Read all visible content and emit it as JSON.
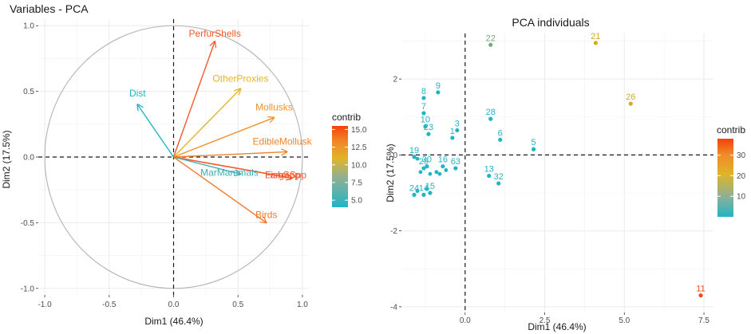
{
  "chart_data": [
    {
      "type": "scatter",
      "subtype": "pca-variables",
      "title": "Variables - PCA",
      "xlabel": "Dim1 (46.4%)",
      "ylabel": "Dim2 (17.5%)",
      "xlim": [
        -1.05,
        1.05
      ],
      "ylim": [
        -1.05,
        1.05
      ],
      "xticks": [
        -1.0,
        -0.5,
        0.0,
        0.5,
        1.0
      ],
      "yticks": [
        -1.0,
        -0.5,
        0.0,
        0.5,
        1.0
      ],
      "xtick_labels": [
        "-1.0",
        "-0.5",
        "0.0",
        "0.5",
        "1.0"
      ],
      "ytick_labels": [
        "-1.0",
        "-0.5",
        "0.0",
        "0.5",
        "1.0"
      ],
      "legend": {
        "title": "contrib",
        "range": [
          4.0,
          15.5
        ],
        "ticks": [
          5.0,
          7.5,
          10.0,
          12.5,
          15.0
        ],
        "tick_labels": [
          "5.0",
          "7.5",
          "10.0",
          "12.5",
          "15.0"
        ],
        "placement": "right"
      },
      "variables": [
        {
          "name": "PerfurShells",
          "x": 0.32,
          "y": 0.88,
          "contrib": 15.0,
          "color": "#f2592a"
        },
        {
          "name": "OtherProxies",
          "x": 0.52,
          "y": 0.52,
          "contrib": 11.5,
          "color": "#e8b420"
        },
        {
          "name": "Mollusks",
          "x": 0.78,
          "y": 0.3,
          "contrib": 12.5,
          "color": "#f0922a"
        },
        {
          "name": "EdibleMollusk",
          "x": 0.88,
          "y": 0.04,
          "contrib": 13.0,
          "color": "#f0832a"
        },
        {
          "name": "FishSpp",
          "x": 0.92,
          "y": -0.16,
          "contrib": 15.5,
          "color": "#f24f20"
        },
        {
          "name": "LargeSpp",
          "x": 0.92,
          "y": -0.16,
          "contrib": 14.8,
          "color": "#f45a2c"
        },
        {
          "name": "MarMammals",
          "x": 0.52,
          "y": -0.13,
          "contrib": 5.0,
          "color": "#3cb0b4"
        },
        {
          "name": "Birds",
          "x": 0.72,
          "y": -0.5,
          "contrib": 13.0,
          "color": "#f07a2c"
        },
        {
          "name": "Dist",
          "x": -0.28,
          "y": 0.4,
          "contrib": 4.5,
          "color": "#22b4c4"
        }
      ]
    },
    {
      "type": "scatter",
      "subtype": "pca-individuals",
      "title": "PCA individuals",
      "xlabel": "Dim1 (46.4%)",
      "ylabel": "Dim2 (17.5%)",
      "xlim": [
        -2.0,
        7.8
      ],
      "ylim": [
        -4.15,
        3.2
      ],
      "xticks": [
        0.0,
        2.5,
        5.0,
        7.5
      ],
      "yticks": [
        -4,
        -2,
        0,
        2
      ],
      "xtick_labels": [
        "0.0",
        "2.5",
        "5.0",
        "7.5"
      ],
      "ytick_labels": [
        "-4",
        "-2",
        "0",
        "2"
      ],
      "legend": {
        "title": "contrib",
        "range": [
          0,
          38
        ],
        "ticks": [
          10,
          20,
          30
        ],
        "tick_labels": [
          "10",
          "20",
          "30"
        ],
        "placement": "right"
      },
      "points": [
        {
          "label": "22",
          "x": 0.8,
          "y": 2.9,
          "color": "#7aaa7a"
        },
        {
          "label": "21",
          "x": 4.1,
          "y": 2.95,
          "color": "#d4aa28"
        },
        {
          "label": "26",
          "x": 5.2,
          "y": 1.35,
          "color": "#d4aa28"
        },
        {
          "label": "11",
          "x": 7.4,
          "y": -3.7,
          "color": "#f24a18"
        },
        {
          "label": "9",
          "x": -0.85,
          "y": 1.65,
          "color": "#22b4c4"
        },
        {
          "label": "8",
          "x": -1.3,
          "y": 1.5,
          "color": "#22b4c4"
        },
        {
          "label": "7",
          "x": -1.3,
          "y": 1.1,
          "color": "#22b4c4"
        },
        {
          "label": "10",
          "x": -1.25,
          "y": 0.75,
          "color": "#22b4c4"
        },
        {
          "label": "23",
          "x": -1.15,
          "y": 0.55,
          "color": "#22b4c4"
        },
        {
          "label": "3",
          "x": -0.25,
          "y": 0.65,
          "color": "#22b4c4"
        },
        {
          "label": "1",
          "x": -0.4,
          "y": 0.45,
          "color": "#22b4c4"
        },
        {
          "label": "28",
          "x": 0.8,
          "y": 0.95,
          "color": "#22b4c4"
        },
        {
          "label": "6",
          "x": 1.1,
          "y": 0.4,
          "color": "#22b4c4"
        },
        {
          "label": "5",
          "x": 2.15,
          "y": 0.15,
          "color": "#22b4c4"
        },
        {
          "label": "19",
          "x": -1.6,
          "y": -0.05,
          "color": "#22b4c4"
        },
        {
          "label": "29",
          "x": -1.3,
          "y": -0.35,
          "color": "#22b4c4"
        },
        {
          "label": "30",
          "x": -1.2,
          "y": -0.3,
          "color": "#22b4c4"
        },
        {
          "label": "16",
          "x": -0.7,
          "y": -0.3,
          "color": "#22b4c4"
        },
        {
          "label": "63",
          "x": -0.3,
          "y": -0.35,
          "color": "#22b4c4"
        },
        {
          "label": "13",
          "x": 0.75,
          "y": -0.55,
          "color": "#22b4c4"
        },
        {
          "label": "32",
          "x": 1.05,
          "y": -0.75,
          "color": "#22b4c4"
        },
        {
          "label": "24",
          "x": -1.6,
          "y": -1.05,
          "color": "#22b4c4"
        },
        {
          "label": "14",
          "x": -1.3,
          "y": -1.05,
          "color": "#22b4c4"
        },
        {
          "label": "15",
          "x": -1.1,
          "y": -1.0,
          "color": "#22b4c4"
        }
      ],
      "extra_points": [
        {
          "x": -1.5,
          "y": -0.1
        },
        {
          "x": -1.4,
          "y": -0.45
        },
        {
          "x": -1.1,
          "y": -0.5
        },
        {
          "x": -0.9,
          "y": -0.45
        },
        {
          "x": -0.8,
          "y": -0.5
        },
        {
          "x": -0.6,
          "y": -0.4
        },
        {
          "x": -1.5,
          "y": -0.95
        },
        {
          "x": -1.2,
          "y": -0.9
        }
      ]
    }
  ]
}
